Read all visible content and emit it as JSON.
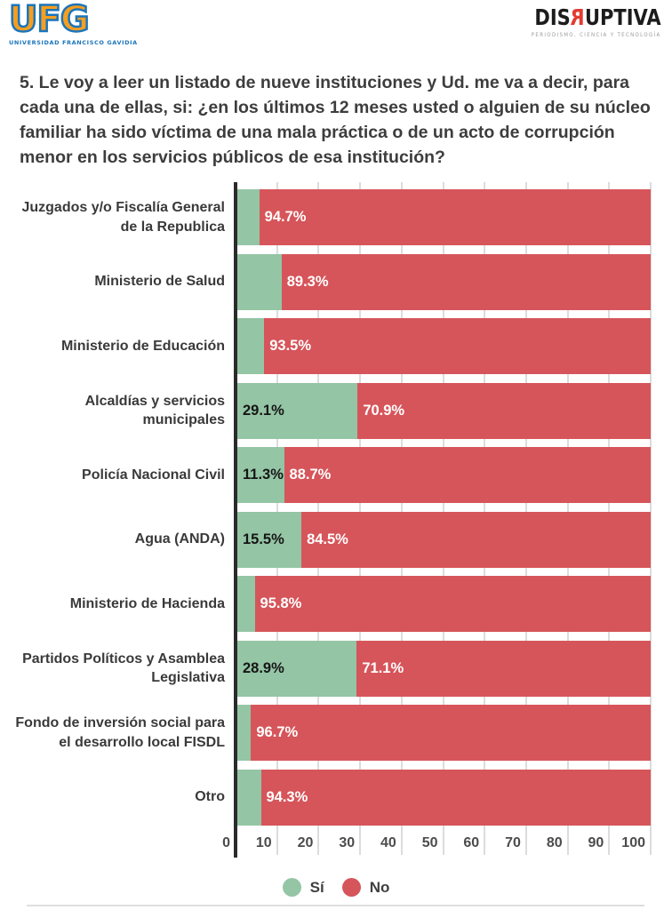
{
  "header": {
    "ufg_logo": {
      "text": "UFG",
      "subtext": "UNIVERSIDAD FRANCISCO GAVIDIA"
    },
    "disruptiva_logo": {
      "prefix": "DIS",
      "reversed_r": "R",
      "suffix": "UPTIVA",
      "subtext": "PERIODISMO, CIENCIA Y TECNOLOGÍA"
    }
  },
  "title": "5. Le voy a leer un listado de nueve instituciones y Ud. me va a decir, para cada una de ellas, si: ¿en los últimos 12 meses usted o alguien de su núcleo familiar ha sido víctima de una mala práctica o de un acto de corrupción menor en los servicios públicos de esa institución?",
  "chart_data": {
    "type": "bar",
    "orientation": "horizontal-stacked",
    "xlim": [
      0,
      100
    ],
    "grid": true,
    "axis_ticks": [
      "0",
      "10",
      "20",
      "30",
      "40",
      "50",
      "60",
      "70",
      "80",
      "90",
      "100"
    ],
    "colors": {
      "si": "#94c5a5",
      "no": "#d6555a",
      "axis": "#2b2b2b",
      "grid": "#dcdcdc"
    },
    "series": [
      {
        "name": "Sí",
        "color": "#94c5a5",
        "values": [
          5.3,
          10.7,
          6.5,
          29.1,
          11.3,
          15.5,
          4.2,
          28.9,
          3.3,
          5.7
        ]
      },
      {
        "name": "No",
        "color": "#d6555a",
        "values": [
          94.7,
          89.3,
          93.5,
          70.9,
          88.7,
          84.5,
          95.8,
          71.1,
          96.7,
          94.3
        ]
      }
    ],
    "categories": [
      "Juzgados y/o Fiscalía General de la Republica",
      "Ministerio de Salud",
      "Ministerio de Educación",
      "Alcaldías y servicios municipales",
      "Policía Nacional Civil",
      "Agua (ANDA)",
      "Ministerio de Hacienda",
      "Partidos Políticos y Asamblea Legislativa",
      "Fondo de inversión social para el desarrollo local FISDL",
      "Otro"
    ],
    "rows": [
      {
        "label": "Juzgados y/o Fiscalía General de la Republica",
        "si": 5.3,
        "no": 94.7,
        "si_label": "",
        "no_label": "94.7%"
      },
      {
        "label": "Ministerio de Salud",
        "si": 10.7,
        "no": 89.3,
        "si_label": "",
        "no_label": "89.3%"
      },
      {
        "label": "Ministerio de Educación",
        "si": 6.5,
        "no": 93.5,
        "si_label": "",
        "no_label": "93.5%"
      },
      {
        "label": "Alcaldías y servicios municipales",
        "si": 29.1,
        "no": 70.9,
        "si_label": "29.1%",
        "no_label": "70.9%"
      },
      {
        "label": "Policía Nacional Civil",
        "si": 11.3,
        "no": 88.7,
        "si_label": "11.3%",
        "no_label": "88.7%"
      },
      {
        "label": "Agua (ANDA)",
        "si": 15.5,
        "no": 84.5,
        "si_label": "15.5%",
        "no_label": "84.5%"
      },
      {
        "label": "Ministerio de Hacienda",
        "si": 4.2,
        "no": 95.8,
        "si_label": "",
        "no_label": "95.8%"
      },
      {
        "label": "Partidos Políticos y Asamblea Legislativa",
        "si": 28.9,
        "no": 71.1,
        "si_label": "28.9%",
        "no_label": "71.1%"
      },
      {
        "label": "Fondo de inversión social para el desarrollo local FISDL",
        "si": 3.3,
        "no": 96.7,
        "si_label": "",
        "no_label": "96.7%"
      },
      {
        "label": "Otro",
        "si": 5.7,
        "no": 94.3,
        "si_label": "",
        "no_label": "94.3%"
      }
    ],
    "legend": [
      {
        "label": "Sí",
        "color": "#94c5a5"
      },
      {
        "label": "No",
        "color": "#d6555a"
      }
    ]
  }
}
